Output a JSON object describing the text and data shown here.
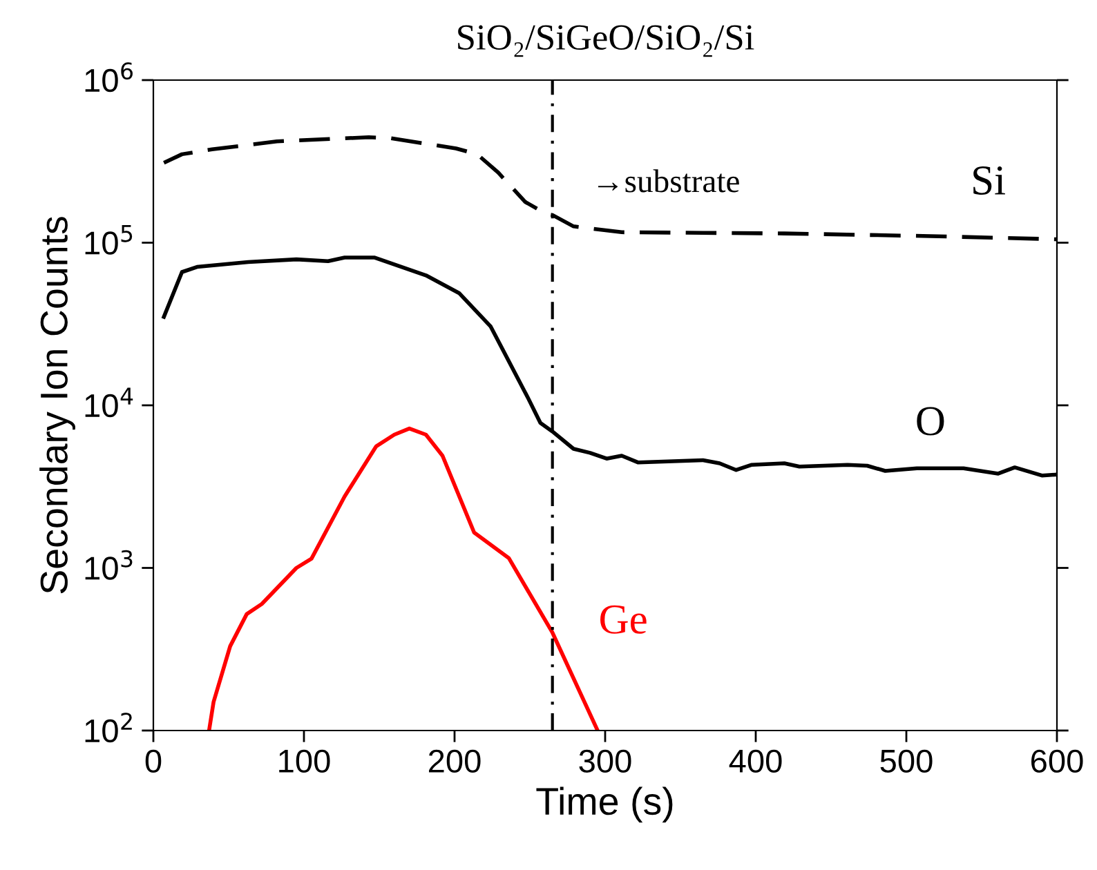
{
  "chart_data": {
    "type": "line",
    "title": "SiO₂/SiGeO/SiO₂/Si",
    "xlabel": "Time (s)",
    "ylabel": "Secondary Ion Counts",
    "log": true,
    "xlim": [
      0,
      600
    ],
    "xticks": [
      0,
      100,
      200,
      300,
      400,
      500,
      600
    ],
    "ylim": [
      100,
      1000000
    ],
    "yticks": [
      {
        "value": 100,
        "label": "10$^{2}$"
      },
      {
        "value": 1000,
        "label": "10$^{3}$"
      },
      {
        "value": 10000,
        "label": "10$^{4}$"
      },
      {
        "value": 100000,
        "label": "10$^{5}$"
      },
      {
        "value": 1000000,
        "label": "10$^{6}$"
      }
    ],
    "grid": false,
    "legend": false,
    "ref_lines": [
      {
        "axis": "x",
        "value": 265,
        "label": null,
        "color": "#000000",
        "line_style": "dashdot"
      }
    ],
    "annotations": [
      "→substrate"
    ],
    "series": [
      {
        "name": "Si",
        "color": "#000000",
        "line_style": "dashed",
        "x": [
          7,
          19,
          39,
          82,
          118,
          143,
          157,
          201,
          215,
          229,
          247,
          261,
          265,
          279,
          311,
          419,
          511,
          600
        ],
        "values": [
          310000,
          350000,
          375000,
          420000,
          435000,
          445000,
          440000,
          380000,
          350000,
          270000,
          178000,
          150000,
          148000,
          126000,
          116000,
          114000,
          110000,
          105000
        ]
      },
      {
        "name": "O",
        "color": "#000000",
        "line_style": "solid",
        "x": [
          7,
          19,
          29,
          63,
          95,
          116,
          127,
          147,
          181,
          203,
          224,
          249,
          257,
          265,
          279,
          290,
          301,
          311,
          322,
          365,
          376,
          387,
          397,
          419,
          429,
          461,
          474,
          486,
          507,
          538,
          561,
          572,
          590,
          600
        ],
        "values": [
          35000,
          66000,
          71000,
          76000,
          79000,
          77000,
          81000,
          81000,
          63000,
          49000,
          30500,
          11000,
          7800,
          6900,
          5400,
          5100,
          4700,
          4900,
          4450,
          4600,
          4400,
          4000,
          4300,
          4400,
          4200,
          4300,
          4250,
          3950,
          4100,
          4100,
          3800,
          4150,
          3700,
          3750
        ]
      },
      {
        "name": "Ge",
        "color": "#ff0000",
        "line_style": "solid",
        "x": [
          37,
          40,
          51,
          62,
          72,
          95,
          105,
          127,
          148,
          160,
          170,
          181,
          192,
          213,
          236,
          265,
          295
        ],
        "values": [
          100,
          150,
          330,
          520,
          600,
          1000,
          1140,
          2750,
          5600,
          6600,
          7200,
          6600,
          4900,
          1650,
          1150,
          400,
          100
        ]
      }
    ]
  }
}
